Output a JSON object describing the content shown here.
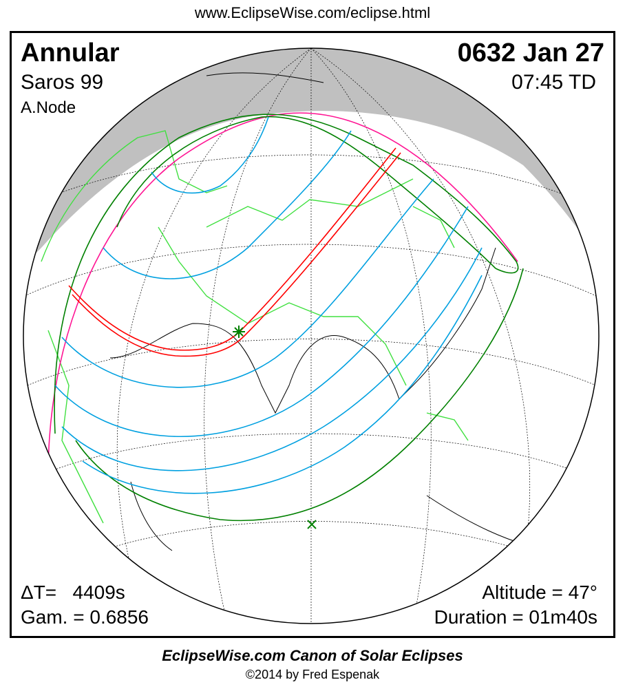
{
  "header_url": "www.EclipseWise.com/eclipse.html",
  "eclipse": {
    "type": "Annular",
    "saros": "Saros  99",
    "node": "A.Node",
    "date": "0632 Jan 27",
    "time": "07:45 TD",
    "delta_t": "ΔT=   4409s",
    "gamma": "Gam. = 0.6856",
    "altitude": "Altitude = 47°",
    "duration": "Duration = 01m40s"
  },
  "footer": {
    "canon": "EclipseWise.com Canon of Solar Eclipses",
    "copyright": "©2014 by Fred Espenak"
  },
  "colors": {
    "night": "#c0c0c0",
    "central_path": "#ff0000",
    "penumbral_limits": "#008000",
    "penumbral_magnitude": "#00a0e0",
    "rise_set": "#ff1493",
    "borders": "#40e040"
  }
}
